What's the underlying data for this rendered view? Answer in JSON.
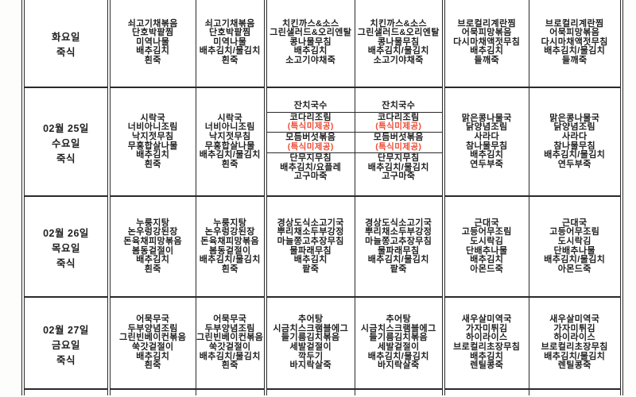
{
  "colors": {
    "peach": "#f7c9a0",
    "red": "#ef4a33",
    "ink": "#1f1f1f",
    "line": "#2a2a2a"
  },
  "rows": [
    {
      "date": "",
      "day": "화요일",
      "meal": "죽식",
      "cells": [
        {
          "shade": false,
          "blocks": [
            {
              "lines": [
                "쇠고기채볶음",
                "단호박팥찜",
                "미역나물",
                "배추김치",
                "흰죽"
              ]
            }
          ]
        },
        {
          "shade": true,
          "blocks": [
            {
              "lines": [
                "쇠고기채볶음",
                "단호박팥찜",
                "미역나물",
                "배추김치/물김치",
                "흰죽"
              ]
            }
          ]
        },
        {
          "shade": false,
          "blocks": [
            {
              "lines": [
                "치킨까스&소스",
                "그린샐러드&오리엔탈",
                "콩나물무침",
                "배추김치",
                "소고기야채죽"
              ]
            }
          ]
        },
        {
          "shade": true,
          "blocks": [
            {
              "lines": [
                "치킨까스&소스",
                "그린샐러드&오리엔탈",
                "콩나물무침",
                "배추김치/물김치",
                "소고기야채죽"
              ]
            }
          ]
        },
        {
          "shade": false,
          "blocks": [
            {
              "lines": [
                "브로컬리계란찜",
                "어묵피망볶음",
                "다시마채액젓무침",
                "배추김치",
                "들깨죽"
              ]
            }
          ]
        },
        {
          "shade": true,
          "blocks": [
            {
              "lines": [
                "브로컬리계란찜",
                "어묵피망볶음",
                "다시마채액젓무침",
                "배추김치/물김치",
                "들깨죽"
              ]
            }
          ]
        }
      ]
    },
    {
      "date": "02월 25일",
      "day": "수요일",
      "meal": "죽식",
      "cells": [
        {
          "shade": false,
          "blocks": [
            {
              "lines": [
                "시락국",
                "너비아니조림",
                "낙지젓무침",
                "무홍합살나물",
                "배추김치",
                "흰죽"
              ]
            }
          ]
        },
        {
          "shade": true,
          "blocks": [
            {
              "lines": [
                "시락국",
                "너비아니조림",
                "낙지젓무침",
                "무홍합살나물",
                "배추김치/물김치",
                "흰죽"
              ]
            }
          ]
        },
        {
          "shade": false,
          "blocks": [
            {
              "weight": 16,
              "lines": [
                "잔치국수"
              ]
            },
            {
              "weight": 25,
              "lines": [
                "코다리조림",
                {
                  "text": "(특식미제공)",
                  "red": true
                }
              ]
            },
            {
              "weight": 27,
              "lines": [
                "모듬버섯볶음",
                {
                  "text": "(특식미제공)",
                  "red": true
                }
              ]
            },
            {
              "weight": 57,
              "lines": [
                "단무지무침",
                "배추김치/요플레",
                "고구마죽"
              ]
            }
          ]
        },
        {
          "shade": true,
          "blocks": [
            {
              "weight": 16,
              "lines": [
                "잔치국수"
              ]
            },
            {
              "weight": 25,
              "lines": [
                "코다리조림",
                {
                  "text": "(특식미제공)",
                  "red": true
                }
              ]
            },
            {
              "weight": 27,
              "lines": [
                "모듬버섯볶음",
                {
                  "text": "(특식미제공)",
                  "red": true
                }
              ]
            },
            {
              "weight": 57,
              "lines": [
                "단무지무침",
                "배추김치/물김치",
                "고구마죽"
              ]
            }
          ]
        },
        {
          "shade": false,
          "blocks": [
            {
              "lines": [
                "맑은콩나물국",
                "닭양념조림",
                "사라다",
                "참나물무침",
                "배추김치",
                "연두부죽"
              ]
            }
          ]
        },
        {
          "shade": true,
          "blocks": [
            {
              "lines": [
                "맑은콩나물국",
                "닭양념조림",
                "사라다",
                "참나물무침",
                "배추김치/물김치",
                "연두부죽"
              ]
            }
          ]
        }
      ]
    },
    {
      "date": "02월 26일",
      "day": "목요일",
      "meal": "죽식",
      "cells": [
        {
          "shade": false,
          "blocks": [
            {
              "lines": [
                "누룽지탕",
                "논우렁강된장",
                "돈육채피망볶음",
                "봄동겉절이",
                "배추김치",
                "흰죽"
              ]
            }
          ]
        },
        {
          "shade": true,
          "blocks": [
            {
              "lines": [
                "누룽지탕",
                "논우렁강된장",
                "돈육채피망볶음",
                "봄동겉절이",
                "배추김치/물김치",
                "흰죽"
              ]
            }
          ]
        },
        {
          "shade": false,
          "blocks": [
            {
              "lines": [
                "경상도식소고기국",
                "뿌리채소두부강정",
                "마늘쫑고추장무침",
                "물파래무침",
                "배추김치",
                "팥죽"
              ]
            }
          ]
        },
        {
          "shade": true,
          "blocks": [
            {
              "lines": [
                "경상도식소고기국",
                "뿌리채소두부강정",
                "마늘쫑고추장무침",
                "물파래무침",
                "배추김치/물김치",
                "팥죽"
              ]
            }
          ]
        },
        {
          "shade": false,
          "blocks": [
            {
              "lines": [
                "근대국",
                "고등어무조림",
                "도시락김",
                "단배추나물",
                "배추김치",
                "아몬드죽"
              ]
            }
          ]
        },
        {
          "shade": true,
          "blocks": [
            {
              "lines": [
                "근대국",
                "고등어무조림",
                "도시락김",
                "단배추나물",
                "배추김치/물김치",
                "아몬드죽"
              ]
            }
          ]
        }
      ]
    },
    {
      "date": "02월 27일",
      "day": "금요일",
      "meal": "죽식",
      "cells": [
        {
          "shade": false,
          "blocks": [
            {
              "lines": [
                "어묵무국",
                "두부양념조림",
                "그린빈베이컨볶음",
                "쑥갓겉절이",
                "배추김치",
                "흰죽"
              ]
            }
          ]
        },
        {
          "shade": true,
          "blocks": [
            {
              "lines": [
                "어묵무국",
                "두부양념조림",
                "그린빈베이컨볶음",
                "쑥갓겉절이",
                "배추김치/물김치",
                "흰죽"
              ]
            }
          ]
        },
        {
          "shade": false,
          "blocks": [
            {
              "lines": [
                "추어탕",
                "시금치스크램블에그",
                "들기름김치볶음",
                "세발겉절이",
                "깍두기",
                "바지락살죽"
              ]
            }
          ]
        },
        {
          "shade": true,
          "blocks": [
            {
              "lines": [
                "추어탕",
                "시금치스크램블에그",
                "들기름김치볶음",
                "세발겉절이",
                "배추김치/물김치",
                "바지락살죽"
              ]
            }
          ]
        },
        {
          "shade": false,
          "blocks": [
            {
              "lines": [
                "새우살미역국",
                "가자미튀김",
                "하이라이스",
                "브로컬리초장무침",
                "배추김치",
                "렌틸콩죽"
              ]
            }
          ]
        },
        {
          "shade": true,
          "blocks": [
            {
              "lines": [
                "새우살미역국",
                "가자미튀김",
                "하이라이스",
                "브로컬리초장무침",
                "배추김치/물김치",
                "렌틸콩죽"
              ]
            }
          ]
        }
      ]
    }
  ],
  "partial_row": {
    "shades": [
      false,
      false,
      true,
      false,
      true,
      false,
      true
    ]
  }
}
